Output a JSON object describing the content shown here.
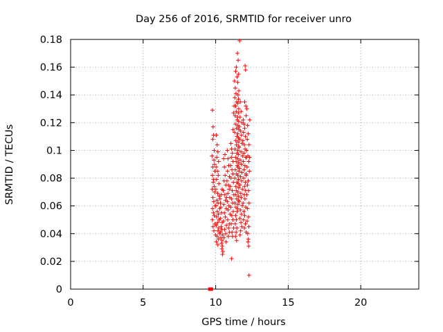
{
  "chart_data": {
    "type": "scatter",
    "title": "Day 256 of 2016, SRMTID for receiver unro",
    "xlabel": "GPS time / hours",
    "ylabel": "SRMTID / TECUs",
    "xlim": [
      0,
      24
    ],
    "ylim": [
      0,
      0.18
    ],
    "xticks": [
      0,
      5,
      10,
      15,
      20
    ],
    "xtick_labels": [
      "0",
      "5",
      "10",
      "15",
      "20"
    ],
    "yticks": [
      0,
      0.02,
      0.04,
      0.06,
      0.08,
      0.1,
      0.12,
      0.14,
      0.16,
      0.18
    ],
    "ytick_labels": [
      "0",
      "0.02",
      "0.04",
      "0.06",
      "0.08",
      "0.1",
      "0.12",
      "0.14",
      "0.16",
      "0.18"
    ],
    "grid": true,
    "marker_color": "#ff0000",
    "zero_markers": {
      "x": [
        9.6,
        9.7
      ],
      "y": [
        0,
        0
      ]
    },
    "series": [
      {
        "points": [
          [
            9.78,
            0.129
          ],
          [
            9.82,
            0.117
          ],
          [
            9.85,
            0.111
          ],
          [
            9.8,
            0.108
          ],
          [
            9.9,
            0.1
          ],
          [
            9.75,
            0.096
          ],
          [
            9.88,
            0.093
          ],
          [
            9.92,
            0.09
          ],
          [
            9.8,
            0.088
          ],
          [
            9.95,
            0.085
          ],
          [
            9.78,
            0.082
          ],
          [
            9.86,
            0.079
          ],
          [
            9.83,
            0.077
          ],
          [
            9.9,
            0.074
          ],
          [
            9.76,
            0.072
          ],
          [
            9.93,
            0.07
          ],
          [
            9.81,
            0.066
          ],
          [
            9.87,
            0.063
          ],
          [
            9.96,
            0.06
          ],
          [
            9.79,
            0.058
          ],
          [
            9.84,
            0.055
          ],
          [
            9.9,
            0.053
          ],
          [
            9.77,
            0.05
          ],
          [
            9.95,
            0.047
          ],
          [
            9.82,
            0.045
          ],
          [
            9.88,
            0.042
          ],
          [
            9.99,
            0.039
          ],
          [
            10.05,
            0.111
          ],
          [
            10.1,
            0.104
          ],
          [
            10.15,
            0.099
          ],
          [
            10.08,
            0.095
          ],
          [
            10.2,
            0.092
          ],
          [
            10.03,
            0.088
          ],
          [
            10.12,
            0.085
          ],
          [
            10.18,
            0.082
          ],
          [
            10.06,
            0.079
          ],
          [
            10.22,
            0.076
          ],
          [
            10.01,
            0.072
          ],
          [
            10.14,
            0.069
          ],
          [
            10.25,
            0.067
          ],
          [
            10.09,
            0.064
          ],
          [
            10.17,
            0.062
          ],
          [
            10.02,
            0.06
          ],
          [
            10.28,
            0.058
          ],
          [
            10.11,
            0.056
          ],
          [
            10.19,
            0.054
          ],
          [
            10.07,
            0.052
          ],
          [
            10.24,
            0.05
          ],
          [
            10.13,
            0.048
          ],
          [
            10.04,
            0.046
          ],
          [
            10.21,
            0.044
          ],
          [
            10.16,
            0.042
          ],
          [
            10.27,
            0.04
          ],
          [
            10.1,
            0.038
          ],
          [
            10.2,
            0.036
          ],
          [
            10.05,
            0.034
          ],
          [
            10.15,
            0.032
          ],
          [
            10.3,
            0.065
          ],
          [
            10.35,
            0.059
          ],
          [
            10.4,
            0.055
          ],
          [
            10.32,
            0.051
          ],
          [
            10.45,
            0.048
          ],
          [
            10.38,
            0.045
          ],
          [
            10.42,
            0.043
          ],
          [
            10.34,
            0.041
          ],
          [
            10.48,
            0.039
          ],
          [
            10.36,
            0.037
          ],
          [
            10.44,
            0.035
          ],
          [
            10.4,
            0.033
          ],
          [
            10.46,
            0.031
          ],
          [
            10.43,
            0.029
          ],
          [
            10.5,
            0.027
          ],
          [
            10.47,
            0.025
          ],
          [
            10.33,
            0.062
          ],
          [
            10.39,
            0.068
          ],
          [
            10.45,
            0.072
          ],
          [
            10.55,
            0.094
          ],
          [
            10.6,
            0.088
          ],
          [
            10.65,
            0.082
          ],
          [
            10.58,
            0.078
          ],
          [
            10.7,
            0.075
          ],
          [
            10.52,
            0.071
          ],
          [
            10.63,
            0.068
          ],
          [
            10.68,
            0.064
          ],
          [
            10.56,
            0.061
          ],
          [
            10.72,
            0.058
          ],
          [
            10.6,
            0.055
          ],
          [
            10.66,
            0.052
          ],
          [
            10.54,
            0.049
          ],
          [
            10.74,
            0.046
          ],
          [
            10.62,
            0.043
          ],
          [
            10.69,
            0.04
          ],
          [
            10.57,
            0.037
          ],
          [
            10.71,
            0.034
          ],
          [
            10.64,
            0.097
          ],
          [
            10.75,
            0.066
          ],
          [
            10.8,
            0.1
          ],
          [
            10.85,
            0.094
          ],
          [
            10.9,
            0.089
          ],
          [
            10.82,
            0.085
          ],
          [
            10.95,
            0.081
          ],
          [
            10.78,
            0.078
          ],
          [
            10.88,
            0.075
          ],
          [
            10.93,
            0.072
          ],
          [
            10.84,
            0.069
          ],
          [
            10.97,
            0.066
          ],
          [
            10.8,
            0.063
          ],
          [
            10.91,
            0.06
          ],
          [
            10.86,
            0.057
          ],
          [
            10.99,
            0.054
          ],
          [
            10.83,
            0.05
          ],
          [
            10.94,
            0.047
          ],
          [
            10.89,
            0.044
          ],
          [
            10.96,
            0.041
          ],
          [
            10.87,
            0.038
          ],
          [
            11.05,
            0.105
          ],
          [
            11.1,
            0.101
          ],
          [
            11.15,
            0.098
          ],
          [
            11.08,
            0.095
          ],
          [
            11.2,
            0.092
          ],
          [
            11.03,
            0.089
          ],
          [
            11.12,
            0.086
          ],
          [
            11.18,
            0.083
          ],
          [
            11.06,
            0.08
          ],
          [
            11.22,
            0.077
          ],
          [
            11.01,
            0.074
          ],
          [
            11.14,
            0.071
          ],
          [
            11.25,
            0.068
          ],
          [
            11.09,
            0.065
          ],
          [
            11.17,
            0.062
          ],
          [
            11.04,
            0.059
          ],
          [
            11.21,
            0.056
          ],
          [
            11.11,
            0.053
          ],
          [
            11.19,
            0.05
          ],
          [
            11.07,
            0.047
          ],
          [
            11.24,
            0.044
          ],
          [
            11.13,
            0.041
          ],
          [
            11.16,
            0.038
          ],
          [
            11.1,
            0.022
          ],
          [
            11.23,
            0.127
          ],
          [
            11.27,
            0.132
          ],
          [
            11.2,
            0.115
          ],
          [
            11.3,
            0.15
          ],
          [
            11.35,
            0.145
          ],
          [
            11.4,
            0.141
          ],
          [
            11.32,
            0.138
          ],
          [
            11.45,
            0.135
          ],
          [
            11.38,
            0.132
          ],
          [
            11.42,
            0.128
          ],
          [
            11.34,
            0.125
          ],
          [
            11.48,
            0.122
          ],
          [
            11.36,
            0.119
          ],
          [
            11.44,
            0.116
          ],
          [
            11.31,
            0.113
          ],
          [
            11.47,
            0.11
          ],
          [
            11.39,
            0.107
          ],
          [
            11.43,
            0.104
          ],
          [
            11.33,
            0.101
          ],
          [
            11.46,
            0.098
          ],
          [
            11.37,
            0.095
          ],
          [
            11.41,
            0.092
          ],
          [
            11.49,
            0.089
          ],
          [
            11.35,
            0.086
          ],
          [
            11.44,
            0.083
          ],
          [
            11.32,
            0.08
          ],
          [
            11.47,
            0.077
          ],
          [
            11.39,
            0.074
          ],
          [
            11.42,
            0.071
          ],
          [
            11.36,
            0.068
          ],
          [
            11.45,
            0.065
          ],
          [
            11.33,
            0.062
          ],
          [
            11.4,
            0.059
          ],
          [
            11.48,
            0.056
          ],
          [
            11.38,
            0.053
          ],
          [
            11.43,
            0.05
          ],
          [
            11.35,
            0.047
          ],
          [
            11.46,
            0.044
          ],
          [
            11.41,
            0.041
          ],
          [
            11.37,
            0.038
          ],
          [
            11.44,
            0.035
          ],
          [
            11.42,
            0.16
          ],
          [
            11.38,
            0.157
          ],
          [
            11.47,
            0.153
          ],
          [
            11.5,
            0.17
          ],
          [
            11.55,
            0.165
          ],
          [
            11.58,
            0.155
          ],
          [
            11.52,
            0.149
          ],
          [
            11.6,
            0.143
          ],
          [
            11.54,
            0.14
          ],
          [
            11.57,
            0.137
          ],
          [
            11.53,
            0.134
          ],
          [
            11.59,
            0.13
          ],
          [
            11.56,
            0.127
          ],
          [
            11.51,
            0.124
          ],
          [
            11.58,
            0.121
          ],
          [
            11.54,
            0.118
          ],
          [
            11.6,
            0.115
          ],
          [
            11.52,
            0.112
          ],
          [
            11.57,
            0.109
          ],
          [
            11.55,
            0.106
          ],
          [
            11.59,
            0.103
          ],
          [
            11.53,
            0.1
          ],
          [
            11.56,
            0.097
          ],
          [
            11.51,
            0.094
          ],
          [
            11.58,
            0.091
          ],
          [
            11.54,
            0.088
          ],
          [
            11.6,
            0.085
          ],
          [
            11.52,
            0.082
          ],
          [
            11.57,
            0.079
          ],
          [
            11.55,
            0.076
          ],
          [
            11.59,
            0.073
          ],
          [
            11.53,
            0.07
          ],
          [
            11.56,
            0.067
          ],
          [
            11.58,
            0.064
          ],
          [
            11.54,
            0.061
          ],
          [
            11.51,
            0.058
          ],
          [
            11.65,
            0.179
          ],
          [
            11.7,
            0.135
          ],
          [
            11.75,
            0.128
          ],
          [
            11.68,
            0.124
          ],
          [
            11.8,
            0.12
          ],
          [
            11.63,
            0.117
          ],
          [
            11.72,
            0.114
          ],
          [
            11.78,
            0.111
          ],
          [
            11.66,
            0.108
          ],
          [
            11.82,
            0.105
          ],
          [
            11.61,
            0.102
          ],
          [
            11.74,
            0.099
          ],
          [
            11.85,
            0.096
          ],
          [
            11.69,
            0.093
          ],
          [
            11.77,
            0.09
          ],
          [
            11.64,
            0.087
          ],
          [
            11.81,
            0.084
          ],
          [
            11.71,
            0.081
          ],
          [
            11.79,
            0.078
          ],
          [
            11.67,
            0.075
          ],
          [
            11.84,
            0.072
          ],
          [
            11.73,
            0.069
          ],
          [
            11.76,
            0.066
          ],
          [
            11.62,
            0.063
          ],
          [
            11.83,
            0.06
          ],
          [
            11.7,
            0.057
          ],
          [
            11.78,
            0.054
          ],
          [
            11.66,
            0.051
          ],
          [
            11.74,
            0.048
          ],
          [
            11.8,
            0.045
          ],
          [
            11.72,
            0.042
          ],
          [
            11.68,
            0.039
          ],
          [
            11.9,
            0.122
          ],
          [
            11.95,
            0.119
          ],
          [
            12.0,
            0.116
          ],
          [
            11.92,
            0.113
          ],
          [
            12.05,
            0.11
          ],
          [
            11.88,
            0.107
          ],
          [
            11.98,
            0.104
          ],
          [
            12.03,
            0.101
          ],
          [
            11.94,
            0.098
          ],
          [
            12.07,
            0.095
          ],
          [
            11.91,
            0.092
          ],
          [
            12.01,
            0.089
          ],
          [
            11.96,
            0.086
          ],
          [
            12.09,
            0.083
          ],
          [
            11.93,
            0.08
          ],
          [
            12.04,
            0.077
          ],
          [
            11.99,
            0.074
          ],
          [
            12.06,
            0.071
          ],
          [
            11.97,
            0.068
          ],
          [
            12.02,
            0.065
          ],
          [
            11.89,
            0.062
          ],
          [
            12.08,
            0.059
          ],
          [
            11.95,
            0.056
          ],
          [
            12.0,
            0.053
          ],
          [
            11.92,
            0.05
          ],
          [
            12.05,
            0.047
          ],
          [
            11.98,
            0.044
          ],
          [
            12.1,
            0.041
          ],
          [
            12.03,
            0.161
          ],
          [
            12.06,
            0.158
          ],
          [
            12.0,
            0.135
          ],
          [
            12.08,
            0.132
          ],
          [
            12.1,
            0.125
          ],
          [
            12.15,
            0.13
          ],
          [
            12.2,
            0.118
          ],
          [
            12.25,
            0.112
          ],
          [
            12.18,
            0.108
          ],
          [
            12.3,
            0.104
          ],
          [
            12.13,
            0.1
          ],
          [
            12.22,
            0.096
          ],
          [
            12.28,
            0.092
          ],
          [
            12.16,
            0.088
          ],
          [
            12.32,
            0.085
          ],
          [
            12.11,
            0.082
          ],
          [
            12.24,
            0.078
          ],
          [
            12.19,
            0.075
          ],
          [
            12.27,
            0.071
          ],
          [
            12.14,
            0.068
          ],
          [
            12.3,
            0.062
          ],
          [
            12.2,
            0.058
          ],
          [
            12.26,
            0.052
          ],
          [
            12.17,
            0.049
          ],
          [
            12.29,
            0.045
          ],
          [
            12.21,
            0.04
          ],
          [
            12.25,
            0.036
          ],
          [
            12.23,
            0.034
          ],
          [
            12.27,
            0.031
          ],
          [
            12.3,
            0.01
          ],
          [
            12.12,
            0.095
          ],
          [
            12.35,
            0.122
          ],
          [
            12.33,
            0.095
          ]
        ]
      }
    ]
  }
}
